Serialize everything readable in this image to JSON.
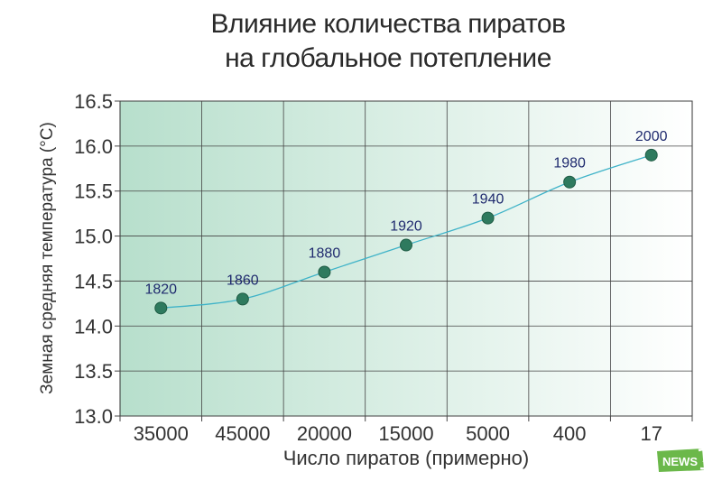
{
  "title_lines": [
    "Влияние количества пиратов",
    "на глобальное потепление"
  ],
  "logo_text": "NEWS",
  "chart_data": {
    "type": "line",
    "title": "Влияние количества пиратов на глобальное потепление",
    "xlabel": "Число пиратов (примерно)",
    "ylabel": "Земная средняя температура (°C)",
    "categories": [
      "35000",
      "45000",
      "20000",
      "15000",
      "5000",
      "400",
      "17"
    ],
    "ylim": [
      13.0,
      16.5
    ],
    "yticks": [
      "13.0",
      "13.5",
      "14.0",
      "14.5",
      "15.0",
      "15.5",
      "16.0",
      "16.5"
    ],
    "grid": true,
    "series": [
      {
        "values": [
          14.2,
          14.3,
          14.6,
          14.9,
          15.2,
          15.6,
          15.9
        ],
        "point_labels": [
          "1820",
          "1860",
          "1880",
          "1920",
          "1940",
          "1980",
          "2000"
        ]
      }
    ],
    "colors": {
      "line": "#3fb3c8",
      "marker": "#2e7a5e",
      "label": "#1f2a6e",
      "bg_left": "#b7dfcc",
      "bg_right": "#ffffff"
    }
  }
}
